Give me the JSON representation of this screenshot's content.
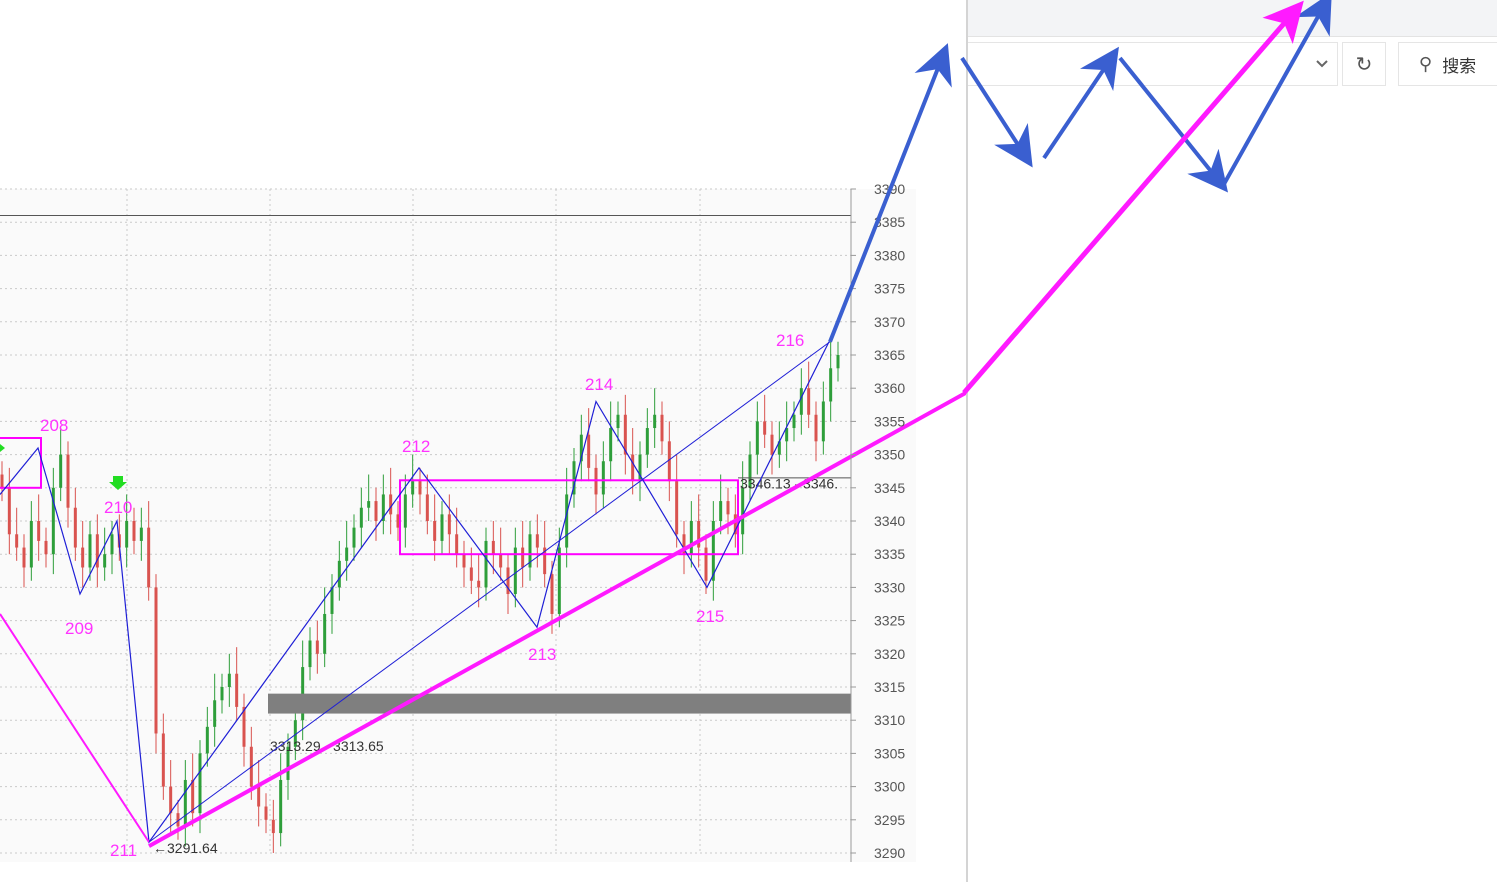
{
  "browser": {
    "search_placeholder": "搜索",
    "refresh_icon": "refresh-icon",
    "dropdown_icon": "chevron-down-icon",
    "search_icon": "search-icon"
  },
  "chart_data": {
    "type": "candlestick",
    "title": "",
    "xlabel": "",
    "ylabel": "",
    "ylim": [
      3290,
      3390
    ],
    "y_ticks": [
      3290,
      3295,
      3300,
      3305,
      3310,
      3315,
      3320,
      3325,
      3330,
      3335,
      3340,
      3345,
      3350,
      3355,
      3360,
      3365,
      3370,
      3375,
      3380,
      3385,
      3390
    ],
    "y_tick_labels": [
      "3290",
      "3295",
      "3300",
      "3305",
      "3310",
      "3315",
      "3320",
      "3325",
      "3330",
      "3335",
      "3340",
      "3345",
      "3350",
      "3355",
      "3360",
      "3365",
      "3370",
      "3375",
      "3380",
      "3385",
      "3390"
    ],
    "grid": true,
    "up_color": "#2e9e3a",
    "down_color": "#d9534f",
    "closes": [
      3345,
      3338,
      3336,
      3333,
      3340,
      3337,
      3335,
      3345,
      3350,
      3342,
      3336,
      3333,
      3338,
      3333,
      3335,
      3338,
      3336,
      3340,
      3337,
      3339,
      3330,
      3308,
      3300,
      3296,
      3294,
      3301,
      3296,
      3305,
      3309,
      3313,
      3315,
      3317,
      3312,
      3306,
      3300,
      3297,
      3295,
      3293,
      3301,
      3306,
      3310,
      3318,
      3322,
      3320,
      3326,
      3330,
      3334,
      3336,
      3339,
      3342,
      3343,
      3340,
      3344,
      3341,
      3339,
      3344,
      3346,
      3344,
      3340,
      3337,
      3341,
      3338,
      3335,
      3333,
      3331,
      3330,
      3337,
      3335,
      3333,
      3329,
      3336,
      3333,
      3338,
      3336,
      3332,
      3326,
      3336,
      3344,
      3349,
      3353,
      3348,
      3344,
      3349,
      3354,
      3356,
      3350,
      3346,
      3350,
      3354,
      3356,
      3352,
      3346,
      3338,
      3335,
      3340,
      3336,
      3331,
      3340,
      3343,
      3341,
      3338,
      3345,
      3350,
      3355,
      3353,
      3350,
      3352,
      3354,
      3356,
      3360,
      3356,
      3352,
      3358,
      3363,
      3365
    ],
    "zigzag_pivots": [
      {
        "label": "208",
        "value": 3351
      },
      {
        "label": "209",
        "value": 3329
      },
      {
        "label": "210",
        "value": 3340
      },
      {
        "label": "211",
        "value": 3291.64
      },
      {
        "label": "212",
        "value": 3348
      },
      {
        "label": "213",
        "value": 3324
      },
      {
        "label": "214",
        "value": 3358
      },
      {
        "label": "215",
        "value": 3330
      },
      {
        "label": "216",
        "value": 3367
      }
    ],
    "zones": [
      {
        "label": "3346.13 - 3346.",
        "low": 3335,
        "high": 3346.13,
        "color": "#ff00ff"
      },
      {
        "label": "3313.29 - 3313.65",
        "low": 3311,
        "high": 3314,
        "color": "#7f7f7f"
      }
    ],
    "price_label": "3291.64",
    "resistance_line": 3386,
    "zigzag_color": "#1f1fd6",
    "trend_color": "#ff1aff",
    "signal_marker_color": "#22dd22",
    "forecast_arrow_color": "#3a5fd0"
  }
}
